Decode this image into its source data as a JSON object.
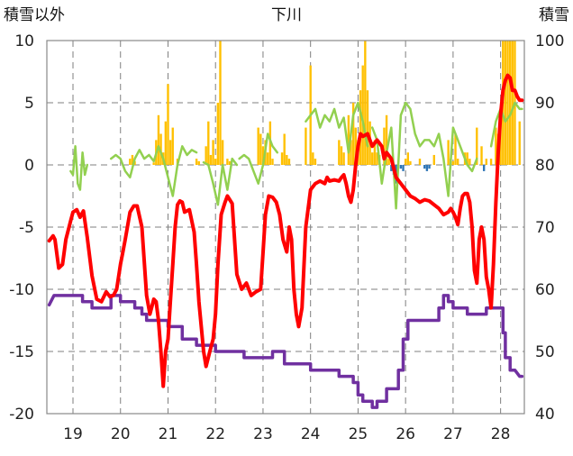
{
  "chart_data": {
    "type": "line",
    "title": "下川",
    "ylabel_left": "積雪以外",
    "ylabel_right": "積雪",
    "ylim_left": [
      -20,
      10
    ],
    "ylim_right": [
      40,
      100
    ],
    "yticks_left": [
      10,
      5,
      0,
      -5,
      -10,
      -15,
      -20
    ],
    "yticks_left_labels": [
      "10",
      "5",
      "0",
      "-5",
      "-10",
      "-15",
      "-20"
    ],
    "yticks_right": [
      100,
      90,
      80,
      70,
      60,
      50,
      40
    ],
    "yticks_right_labels": [
      "100",
      "90",
      "80",
      "70",
      "60",
      "50",
      "40"
    ],
    "xlim": [
      18.45,
      28.5
    ],
    "xticks": [
      19,
      20,
      21,
      22,
      23,
      24,
      25,
      26,
      27,
      28
    ],
    "xtick_labels": [
      "19",
      "20",
      "21",
      "22",
      "23",
      "24",
      "25",
      "26",
      "27",
      "28"
    ],
    "grid": true,
    "colors": {
      "temperature": "#ff0000",
      "snow_depth": "#7030a0",
      "wind": "#92d050",
      "precip_positive": "#ffc000",
      "precip_negative": "#2e75b6",
      "grid": "#7f7f7f",
      "frame": "#888888"
    },
    "series": [
      {
        "name": "temperature",
        "axis": "left",
        "kind": "line",
        "x": [
          18.5,
          18.58,
          18.62,
          18.7,
          18.78,
          18.85,
          18.95,
          19.0,
          19.08,
          19.15,
          19.22,
          19.3,
          19.4,
          19.5,
          19.6,
          19.7,
          19.78,
          19.85,
          19.92,
          20.0,
          20.05,
          20.1,
          20.2,
          20.28,
          20.35,
          20.45,
          20.55,
          20.62,
          20.7,
          20.75,
          20.8,
          20.85,
          20.9,
          20.95,
          21.0,
          21.05,
          21.1,
          21.15,
          21.2,
          21.25,
          21.3,
          21.35,
          21.45,
          21.55,
          21.6,
          21.65,
          21.7,
          21.75,
          21.8,
          21.88,
          21.95,
          22.0,
          22.05,
          22.12,
          22.2,
          22.25,
          22.35,
          22.45,
          22.55,
          22.65,
          22.75,
          22.85,
          22.95,
          23.0,
          23.05,
          23.12,
          23.2,
          23.28,
          23.35,
          23.42,
          23.5,
          23.55,
          23.6,
          23.65,
          23.7,
          23.75,
          23.82,
          23.9,
          24.0,
          24.1,
          24.2,
          24.3,
          24.35,
          24.4,
          24.5,
          24.6,
          24.65,
          24.7,
          24.75,
          24.8,
          24.85,
          24.9,
          24.95,
          25.0,
          25.05,
          25.1,
          25.2,
          25.3,
          25.4,
          25.5,
          25.55,
          25.6,
          25.7,
          25.8,
          25.9,
          26.0,
          26.1,
          26.2,
          26.3,
          26.4,
          26.5,
          26.6,
          26.7,
          26.8,
          26.9,
          26.95,
          27.0,
          27.05,
          27.1,
          27.15,
          27.2,
          27.25,
          27.3,
          27.35,
          27.4,
          27.45,
          27.5,
          27.55,
          27.6,
          27.65,
          27.7,
          27.75,
          27.8,
          27.85,
          27.9,
          27.95,
          28.0,
          28.05,
          28.1,
          28.15,
          28.2,
          28.25,
          28.3,
          28.35,
          28.4,
          28.45
        ],
        "y": [
          -6.1,
          -5.7,
          -6.0,
          -8.3,
          -8.0,
          -6.0,
          -4.5,
          -3.8,
          -3.6,
          -4.2,
          -3.7,
          -5.8,
          -8.9,
          -10.8,
          -11.0,
          -10.2,
          -10.6,
          -10.5,
          -10.0,
          -8.0,
          -7.0,
          -6.0,
          -3.8,
          -3.3,
          -3.3,
          -5.0,
          -10.5,
          -12.0,
          -10.8,
          -11.0,
          -12.5,
          -15.0,
          -17.8,
          -15.0,
          -14.0,
          -11.0,
          -8.0,
          -5.0,
          -3.2,
          -2.9,
          -3.0,
          -3.8,
          -3.6,
          -5.4,
          -8.0,
          -11.0,
          -13.0,
          -15.0,
          -16.2,
          -15.0,
          -14.0,
          -12.0,
          -8.0,
          -4.0,
          -3.0,
          -2.5,
          -3.1,
          -8.8,
          -10.0,
          -9.5,
          -10.5,
          -10.2,
          -10.0,
          -7.0,
          -4.0,
          -2.5,
          -2.6,
          -3.0,
          -4.0,
          -6.0,
          -7.0,
          -5.0,
          -6.0,
          -10.0,
          -12.0,
          -13.0,
          -11.5,
          -5.0,
          -2.0,
          -1.5,
          -1.3,
          -1.5,
          -1.0,
          -1.3,
          -1.2,
          -1.3,
          -1.0,
          -0.8,
          -1.5,
          -2.5,
          -3.0,
          -2.0,
          0.0,
          1.5,
          2.5,
          2.3,
          2.5,
          1.5,
          2.0,
          1.5,
          0.5,
          1.0,
          0.5,
          -1.0,
          -1.5,
          -2.0,
          -2.5,
          -2.7,
          -3.0,
          -2.8,
          -2.9,
          -3.2,
          -3.5,
          -4.0,
          -3.8,
          -3.5,
          -3.8,
          -4.2,
          -4.8,
          -3.5,
          -2.5,
          -2.3,
          -2.3,
          -3.0,
          -5.0,
          -8.5,
          -9.5,
          -6.0,
          -5.0,
          -6.0,
          -9.0,
          -10.0,
          -11.5,
          -8.0,
          -3.0,
          1.0,
          4.0,
          6.0,
          6.8,
          7.2,
          7.0,
          6.0,
          6.0,
          5.5,
          5.2,
          5.2
        ]
      },
      {
        "name": "snow_depth",
        "axis": "right",
        "kind": "step",
        "x": [
          18.5,
          18.6,
          19.2,
          19.2,
          19.4,
          19.4,
          19.6,
          19.6,
          19.8,
          19.8,
          20.0,
          20.0,
          20.3,
          20.3,
          20.45,
          20.45,
          20.55,
          20.55,
          21.0,
          21.0,
          21.3,
          21.3,
          21.6,
          21.6,
          22.0,
          22.0,
          22.6,
          22.6,
          23.2,
          23.2,
          23.45,
          23.45,
          24.0,
          24.0,
          24.6,
          24.6,
          24.9,
          24.9,
          25.0,
          25.0,
          25.1,
          25.1,
          25.3,
          25.3,
          25.4,
          25.4,
          25.6,
          25.6,
          25.85,
          25.85,
          25.95,
          25.95,
          26.05,
          26.05,
          26.7,
          26.7,
          26.8,
          26.8,
          26.9,
          26.9,
          27.0,
          27.0,
          27.1,
          27.1,
          27.3,
          27.3,
          27.7,
          27.7,
          28.05,
          28.05,
          28.1,
          28.1,
          28.2,
          28.2,
          28.3,
          28.3,
          28.4,
          28.45
        ],
        "y": [
          57.5,
          59.0,
          59.0,
          58.0,
          58.0,
          57.0,
          57.0,
          57.0,
          57.0,
          59.0,
          59.0,
          58.0,
          58.0,
          57.0,
          57.0,
          56.0,
          56.0,
          55.0,
          55.0,
          54.0,
          54.0,
          52.0,
          52.0,
          51.0,
          51.0,
          50.0,
          50.0,
          49.0,
          49.0,
          50.0,
          50.0,
          48.0,
          48.0,
          47.0,
          47.0,
          46.0,
          46.0,
          45.0,
          45.0,
          43.0,
          43.0,
          42.0,
          42.0,
          41.0,
          41.0,
          42.0,
          42.0,
          44.0,
          44.0,
          47.0,
          47.0,
          52.0,
          52.0,
          55.0,
          55.0,
          57.0,
          57.0,
          59.0,
          59.0,
          58.0,
          58.0,
          57.0,
          57.0,
          57.0,
          57.0,
          56.0,
          56.0,
          57.0,
          57.0,
          53.0,
          53.0,
          49.0,
          49.0,
          47.0,
          47.0,
          47.0,
          46.0,
          46.0
        ]
      },
      {
        "name": "wind",
        "axis": "left",
        "kind": "line",
        "segments": [
          {
            "x": [
              18.95,
              19.0,
              19.05,
              19.1,
              19.15,
              19.2,
              19.25,
              19.3
            ],
            "y": [
              -0.5,
              -0.8,
              1.5,
              -1.5,
              -2.0,
              1.0,
              -0.8,
              0.0
            ]
          },
          {
            "x": [
              19.8,
              19.9,
              20.0,
              20.1,
              20.2,
              20.3,
              20.4,
              20.5,
              20.6,
              20.7,
              20.8,
              20.9,
              21.0,
              21.1,
              21.2,
              21.3,
              21.4,
              21.5,
              21.6
            ],
            "y": [
              0.5,
              0.8,
              0.5,
              -0.5,
              -1.0,
              0.5,
              1.2,
              0.5,
              0.8,
              0.3,
              1.5,
              0.5,
              -1.0,
              -2.5,
              0.0,
              1.5,
              0.8,
              1.2,
              1.0
            ]
          },
          {
            "x": [
              21.75,
              21.85,
              21.95,
              22.05,
              22.15,
              22.25,
              22.35,
              22.45
            ],
            "y": [
              0.2,
              0.0,
              -1.5,
              -3.2,
              0.0,
              -2.0,
              0.5,
              0.0
            ]
          },
          {
            "x": [
              22.5,
              22.6,
              22.7,
              22.8,
              22.9,
              23.0,
              23.1,
              23.2,
              23.3
            ],
            "y": [
              0.5,
              0.8,
              0.5,
              -0.5,
              -1.5,
              0.0,
              2.5,
              1.5,
              1.0
            ]
          },
          {
            "x": [
              23.9,
              24.0,
              24.1,
              24.2,
              24.3,
              24.4,
              24.5,
              24.6,
              24.7,
              24.8,
              24.9,
              25.0,
              25.1,
              25.2
            ],
            "y": [
              3.5,
              4.0,
              4.5,
              3.0,
              4.0,
              3.5,
              4.5,
              3.0,
              3.8,
              1.0,
              4.0,
              5.0,
              3.5,
              1.5
            ]
          },
          {
            "x": [
              25.3,
              25.4,
              25.5,
              25.6,
              25.7,
              25.8,
              25.9,
              26.0,
              26.1,
              26.2,
              26.3,
              26.4,
              26.5,
              26.6,
              26.7,
              26.8,
              26.9,
              27.0,
              27.1,
              27.2,
              27.3,
              27.4,
              27.5
            ],
            "y": [
              3.0,
              2.0,
              -1.5,
              1.0,
              3.0,
              -3.5,
              4.0,
              5.0,
              4.5,
              2.5,
              1.5,
              2.0,
              2.0,
              1.5,
              2.5,
              0.5,
              -2.5,
              3.0,
              2.0,
              1.0,
              0.0,
              -0.5,
              0.5
            ]
          },
          {
            "x": [
              27.8,
              27.9,
              28.0,
              28.1,
              28.2,
              28.3,
              28.4,
              28.45
            ],
            "y": [
              1.5,
              3.5,
              4.5,
              3.5,
              4.0,
              5.0,
              4.5,
              4.5
            ]
          }
        ]
      },
      {
        "name": "precipitation",
        "axis": "left",
        "kind": "bar",
        "x": [
          20.2,
          20.25,
          20.3,
          20.7,
          20.75,
          20.8,
          20.85,
          20.9,
          20.95,
          21.0,
          21.05,
          21.1,
          21.2,
          21.6,
          21.65,
          21.8,
          21.85,
          21.9,
          21.95,
          22.0,
          22.05,
          22.1,
          22.15,
          22.25,
          22.3,
          22.9,
          22.95,
          23.0,
          23.05,
          23.1,
          23.15,
          23.2,
          23.4,
          23.45,
          23.5,
          23.55,
          23.9,
          24.0,
          24.05,
          24.1,
          24.6,
          24.65,
          24.7,
          24.8,
          24.85,
          24.9,
          24.95,
          25.0,
          25.05,
          25.1,
          25.15,
          25.2,
          25.25,
          25.3,
          25.35,
          25.4,
          25.45,
          25.55,
          25.6,
          25.65,
          25.7,
          25.75,
          25.8,
          25.9,
          25.95,
          26.0,
          26.05,
          26.1,
          26.3,
          26.4,
          26.45,
          26.5,
          26.6,
          26.9,
          26.95,
          27.0,
          27.05,
          27.1,
          27.25,
          27.3,
          27.35,
          27.5,
          27.6,
          27.65,
          27.7,
          27.8,
          27.9,
          27.95,
          28.0,
          28.05,
          28.1,
          28.15,
          28.2,
          28.25,
          28.3,
          28.4
        ],
        "y": [
          0.5,
          0.8,
          0.3,
          0.2,
          2.0,
          4.0,
          2.5,
          1.0,
          3.5,
          6.5,
          2.0,
          3.0,
          0.5,
          0.5,
          0.3,
          1.5,
          3.5,
          0.8,
          2.0,
          0.5,
          5.0,
          10.0,
          2.0,
          0.5,
          0.3,
          3.0,
          2.5,
          1.5,
          2.0,
          1.0,
          3.5,
          0.5,
          1.0,
          2.5,
          0.8,
          0.5,
          3.0,
          8.0,
          1.0,
          0.5,
          2.0,
          1.5,
          1.0,
          4.0,
          2.0,
          5.0,
          3.0,
          2.0,
          6.0,
          8.0,
          10.0,
          6.0,
          3.5,
          1.0,
          2.0,
          1.0,
          0.8,
          3.0,
          4.0,
          0.5,
          -0.5,
          -0.8,
          -1.5,
          -0.3,
          -0.5,
          0.5,
          1.0,
          0.3,
          0.5,
          -0.3,
          -0.5,
          -0.3,
          0.8,
          2.0,
          0.5,
          0.3,
          2.5,
          0.5,
          1.0,
          1.0,
          0.5,
          3.0,
          1.5,
          -0.5,
          0.5,
          0.5,
          3.0,
          2.5,
          4.5,
          10.0,
          10.0,
          10.0,
          10.0,
          10.0,
          10.0,
          3.5
        ]
      }
    ]
  }
}
